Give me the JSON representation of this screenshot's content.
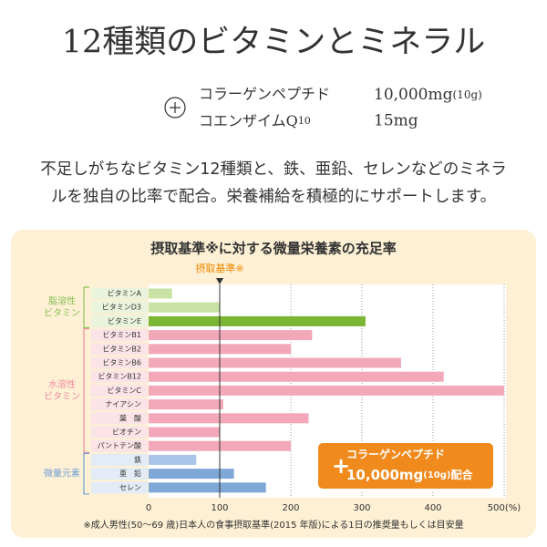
{
  "header": {
    "title": "12種類のビタミンとミネラル",
    "items": [
      {
        "name": "コラーゲンペプチド",
        "amount": "10,000mg",
        "amount_note": "(10g)"
      },
      {
        "name": "コエンザイムQ",
        "name_sub": "10",
        "amount": "15mg"
      }
    ]
  },
  "intro": [
    "不足しがちなビタミン12種類と、鉄、亜鉛、セレンなどのミネラ",
    "ルを独自の比率で配合。栄養補給を積極的にサポートします。"
  ],
  "callout": {
    "line1": "コラーゲンペプチド",
    "amount": "10,000mg",
    "note": "(10g)",
    "suffix": "配合"
  },
  "footnote": "※成人男性(50〜69 歳)日本人の食事摂取基準(2015 年版)による1日の推奨量もしくは目安量",
  "chart_data": {
    "type": "bar",
    "orientation": "horizontal",
    "title": "摂取基準※に対する微量栄養素の充足率",
    "reference_label": "摂取基準※",
    "reference_value": 100,
    "xlim": [
      0,
      500
    ],
    "xticks": [
      0,
      100,
      200,
      300,
      400,
      {
        "value": 500,
        "label": "500(%)"
      }
    ],
    "grid": true,
    "groups": [
      {
        "label_lines": [
          "脂溶性",
          "ビタミン"
        ],
        "color": "#8cc05a",
        "background": "#eaf3dc",
        "categories": [
          "ビタミンA",
          "ビタミンD3",
          "ビタミンE"
        ],
        "values": [
          33,
          100,
          305
        ],
        "colors": [
          "#c8e2a4",
          "#c8e2a4",
          "#7ab534"
        ]
      },
      {
        "label_lines": [
          "水溶性",
          "ビタミン"
        ],
        "color": "#f08ca0",
        "background": "#fbe3e8",
        "categories": [
          "ビタミンB1",
          "ビタミンB2",
          "ビタミンB6",
          "ビタミンB12",
          "ビタミンC",
          "ナイアシン",
          "葉　酸",
          "ビオチン",
          "パントテン酸"
        ],
        "values": [
          230,
          200,
          355,
          415,
          500,
          105,
          225,
          100,
          200
        ],
        "colors": [
          "#f2a8b8",
          "#f2a8b8",
          "#f2a8b8",
          "#f2a8b8",
          "#f2a8b8",
          "#f2a8b8",
          "#f2a8b8",
          "#f2a8b8",
          "#f2a8b8"
        ]
      },
      {
        "label_lines": [
          "微量元素"
        ],
        "color": "#6f9fd6",
        "background": "#e3ecf6",
        "categories": [
          "鉄",
          "亜　鉛",
          "セレン"
        ],
        "values": [
          67,
          120,
          165
        ],
        "colors": [
          "#a9c4e6",
          "#7fa7d8",
          "#7fa7d8"
        ]
      }
    ]
  }
}
